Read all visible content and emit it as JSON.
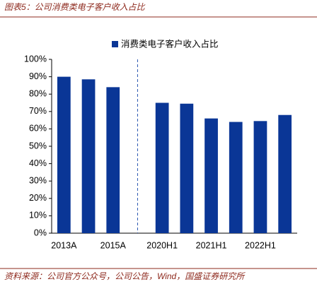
{
  "chart_data": {
    "type": "bar",
    "title": "图表5：公司消费类电子客户收入占比",
    "source": "资料来源：公司官方公众号，公司公告，Wind，国盛证券研究所",
    "categories": [
      "2013A",
      null,
      "2015A",
      null,
      "2020H1",
      null,
      "2021H1",
      null,
      "2022H1",
      null
    ],
    "series": [
      {
        "name": "消费类电子客户收入占比",
        "color": "#0a3696",
        "values": [
          90,
          88.5,
          84,
          null,
          75,
          74.5,
          66,
          64,
          64.5,
          68
        ]
      }
    ],
    "ylim": [
      0,
      100
    ],
    "yticks": [
      {
        "value": 0,
        "label": "0%"
      },
      {
        "value": 10,
        "label": "10%"
      },
      {
        "value": 20,
        "label": "20%"
      },
      {
        "value": 30,
        "label": "30%"
      },
      {
        "value": 40,
        "label": "40%"
      },
      {
        "value": 50,
        "label": "50%"
      },
      {
        "value": 60,
        "label": "60%"
      },
      {
        "value": 70,
        "label": "70%"
      },
      {
        "value": 80,
        "label": "80%"
      },
      {
        "value": 90,
        "label": "90%"
      },
      {
        "value": 100,
        "label": "100%"
      }
    ],
    "legend": "top"
  }
}
